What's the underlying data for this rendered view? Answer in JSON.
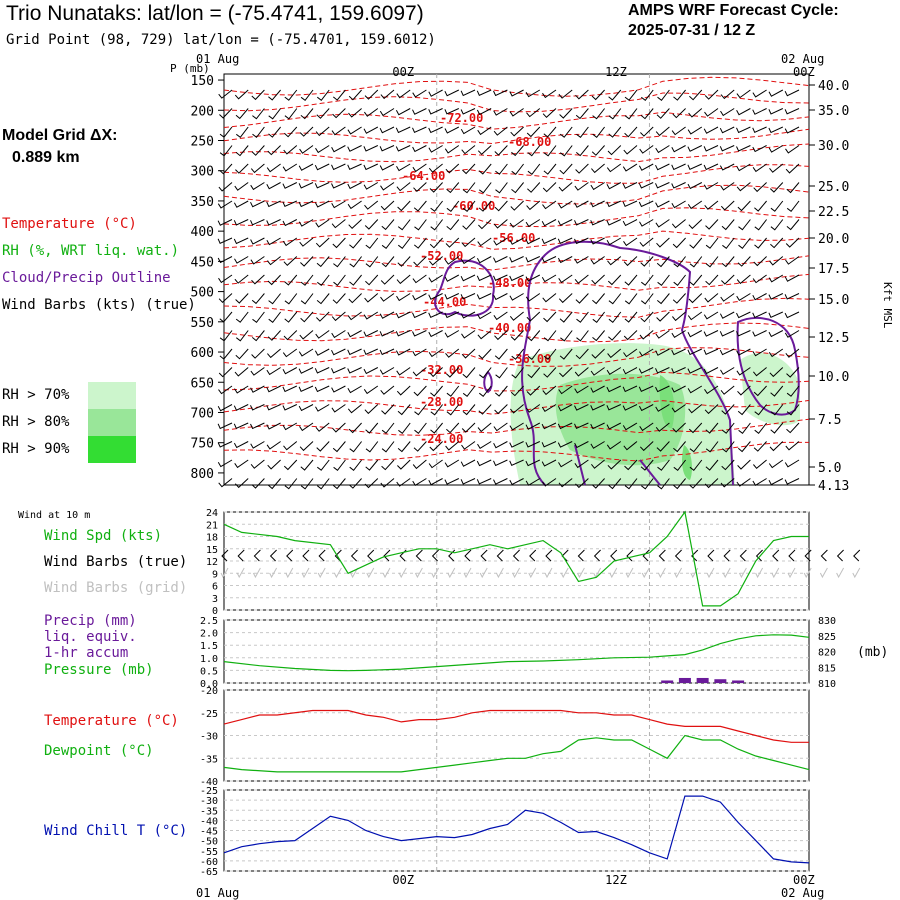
{
  "header": {
    "title": "Trio Nunataks:  lat/lon = (-75.4741, 159.6097)",
    "subtitle": "Grid Point (98, 729) lat/lon = (-75.4701, 159.6012)",
    "cycle_title": "AMPS WRF Forecast Cycle:",
    "cycle_value": "2025-07-31 / 12  Z"
  },
  "model_grid": {
    "label": "Model Grid ΔX:",
    "value": "0.889 km"
  },
  "legends": {
    "temperature": {
      "label": "Temperature (°C)",
      "color": "#e01010"
    },
    "rh": {
      "label": "RH (%, WRT liq. wat.)",
      "color": "#10b010"
    },
    "cloud": {
      "label": "Cloud/Precip Outline",
      "color": "#6a1a9a"
    },
    "barbs": {
      "label": "Wind Barbs (kts) (true)",
      "color": "#000000"
    },
    "rh_levels": [
      {
        "label": "RH > 70%",
        "color": "#ccf5cc"
      },
      {
        "label": "RH > 80%",
        "color": "#99e699"
      },
      {
        "label": "RH > 90%",
        "color": "#33dd33"
      }
    ]
  },
  "time_axis": {
    "top_dates": [
      "01 Aug",
      "02 Aug"
    ],
    "ticks": [
      "00Z",
      "12Z",
      "00Z"
    ],
    "bottom_dates": [
      "01 Aug",
      "02 Aug"
    ]
  },
  "chart_data": [
    {
      "type": "heatmap",
      "title": "",
      "ylabel": "P (mb)",
      "y2label": "Kft MSL",
      "x_range_hours": [
        0,
        33
      ],
      "ylim_mb": [
        820,
        140
      ],
      "y_ticks_mb": [
        150,
        200,
        250,
        300,
        350,
        400,
        450,
        500,
        550,
        600,
        650,
        700,
        750,
        800
      ],
      "y2_ticks_kft": [
        "40.0",
        "35.0",
        "30.0",
        "25.0",
        "22.5",
        "20.0",
        "17.5",
        "15.0",
        "12.5",
        "10.0",
        "7.5",
        "5.0",
        "4.13"
      ],
      "temperature_contour_labels": [
        "-72.00",
        "-68.00",
        "-64.00",
        "-60.00",
        "-56.00",
        "-52.00",
        "-48.00",
        "-44.00",
        "-40.00",
        "-36.00",
        "-32.00",
        "-28.00",
        "-24.00"
      ]
    },
    {
      "type": "line",
      "title": "Wind at 10 m",
      "series": [
        {
          "name": "Wind Spd (kts)",
          "color": "#10b010",
          "x": [
            0,
            1,
            3,
            4,
            6,
            7,
            8,
            9,
            10,
            11,
            12,
            13,
            14,
            15,
            16,
            17,
            18,
            19,
            20,
            21,
            22,
            23,
            24,
            25,
            26,
            27,
            28,
            29,
            30,
            31,
            32,
            33
          ],
          "y": [
            21,
            19,
            18,
            17,
            16,
            9,
            11,
            13,
            14,
            15,
            15,
            14,
            15,
            16,
            15,
            16,
            17,
            14,
            7,
            8,
            12,
            13,
            14,
            18,
            24,
            1,
            1,
            4,
            12,
            17,
            18,
            18
          ]
        }
      ],
      "legend": [
        "Wind Spd (kts)",
        "Wind Barbs (true)",
        "Wind Barbs (grid)"
      ],
      "ylim": [
        0,
        24
      ],
      "y_ticks": [
        0,
        3,
        6,
        9,
        12,
        15,
        18,
        21,
        24
      ]
    },
    {
      "type": "line",
      "title": "",
      "series": [
        {
          "name": "Pressure (mb)",
          "color": "#10b010",
          "x": [
            0,
            2,
            4,
            6,
            7,
            8,
            10,
            12,
            14,
            16,
            18,
            20,
            22,
            24,
            25,
            26,
            27,
            28,
            29,
            30,
            31,
            32,
            33
          ],
          "y": [
            816.8,
            815.5,
            814.6,
            814.0,
            813.9,
            814.0,
            814.4,
            815.2,
            816.0,
            816.8,
            817.0,
            817.4,
            818.0,
            818.2,
            818.6,
            819.0,
            820.5,
            822.5,
            824.0,
            825.0,
            825.3,
            825.2,
            824.5
          ]
        },
        {
          "name": "Precip (mm) liq. equiv. 1-hr accum",
          "color": "#6a1a9a",
          "x": [
            25,
            26,
            27,
            28,
            29
          ],
          "y": [
            0.1,
            0.2,
            0.2,
            0.15,
            0.1
          ]
        }
      ],
      "legend": [
        "Precip (mm)",
        "liq. equiv.",
        "1-hr accum",
        "Pressure (mb)"
      ],
      "ylim": [
        0,
        2.5
      ],
      "y_ticks": [
        "0.0",
        "0.5",
        "1.0",
        "1.5",
        "2.0",
        "2.5"
      ],
      "y2lim": [
        810,
        830
      ],
      "y2_ticks": [
        "810",
        "815",
        "820",
        "825",
        "830"
      ],
      "y2label": "(mb)"
    },
    {
      "type": "line",
      "title": "",
      "series": [
        {
          "name": "Temperature (°C)",
          "color": "#e01010",
          "x": [
            0,
            1,
            2,
            3,
            5,
            6,
            7,
            8,
            9,
            10,
            11,
            12,
            13,
            14,
            15,
            16,
            17,
            18,
            19,
            20,
            21,
            22,
            23,
            24,
            25,
            26,
            27,
            28,
            29,
            30,
            31,
            32,
            33
          ],
          "y": [
            -27.5,
            -26.5,
            -25.5,
            -25.5,
            -24.5,
            -24.5,
            -24.5,
            -25.5,
            -26,
            -27,
            -26.5,
            -26.5,
            -26,
            -25,
            -24.5,
            -24.5,
            -24.5,
            -24.5,
            -24.5,
            -25,
            -25,
            -25.5,
            -25.5,
            -26.5,
            -27.5,
            -28,
            -28,
            -28,
            -29,
            -30,
            -31,
            -31.5,
            -31.5
          ]
        },
        {
          "name": "Dewpoint (°C)",
          "color": "#10b010",
          "x": [
            0,
            1,
            3,
            5,
            6,
            7,
            8,
            9,
            10,
            11,
            12,
            13,
            14,
            15,
            16,
            17,
            18,
            19,
            20,
            21,
            22,
            23,
            24,
            25,
            26,
            27,
            28,
            29,
            30,
            31,
            32,
            33
          ],
          "y": [
            -37,
            -37.5,
            -38,
            -38,
            -38,
            -38,
            -38,
            -38,
            -38,
            -37.5,
            -37,
            -36.5,
            -36,
            -35.5,
            -35,
            -35,
            -34,
            -33.5,
            -31,
            -30.5,
            -31,
            -31,
            -33,
            -35,
            -30,
            -31,
            -31,
            -33,
            -34.5,
            -35.5,
            -36.5,
            -37.5
          ]
        }
      ],
      "legend": [
        "Temperature (°C)",
        "Dewpoint (°C)"
      ],
      "ylim": [
        -40,
        -20
      ],
      "y_ticks": [
        -20,
        -25,
        -30,
        -35,
        -40
      ]
    },
    {
      "type": "line",
      "title": "",
      "series": [
        {
          "name": "Wind Chill T (°C)",
          "color": "#0010b0",
          "x": [
            0,
            1,
            2,
            3,
            4,
            5,
            6,
            7,
            8,
            9,
            10,
            11,
            12,
            13,
            14,
            15,
            16,
            17,
            18,
            19,
            20,
            21,
            22,
            23,
            24,
            25,
            26,
            27,
            28,
            29,
            30,
            31,
            32,
            33
          ],
          "y": [
            -56,
            -53,
            -51.5,
            -50.5,
            -50,
            -44,
            -38,
            -40,
            -45,
            -48,
            -50,
            -49,
            -48,
            -48.5,
            -47,
            -44,
            -42,
            -35,
            -36.5,
            -41,
            -46,
            -45.5,
            -48.5,
            -52,
            -56,
            -59,
            -28,
            -28,
            -31,
            -41,
            -50,
            -59,
            -60.5,
            -61
          ]
        }
      ],
      "legend": [
        "Wind Chill T (°C)"
      ],
      "ylim": [
        -65,
        -25
      ],
      "y_ticks": [
        -25,
        -30,
        -35,
        -40,
        -45,
        -50,
        -55,
        -60,
        -65
      ]
    }
  ]
}
